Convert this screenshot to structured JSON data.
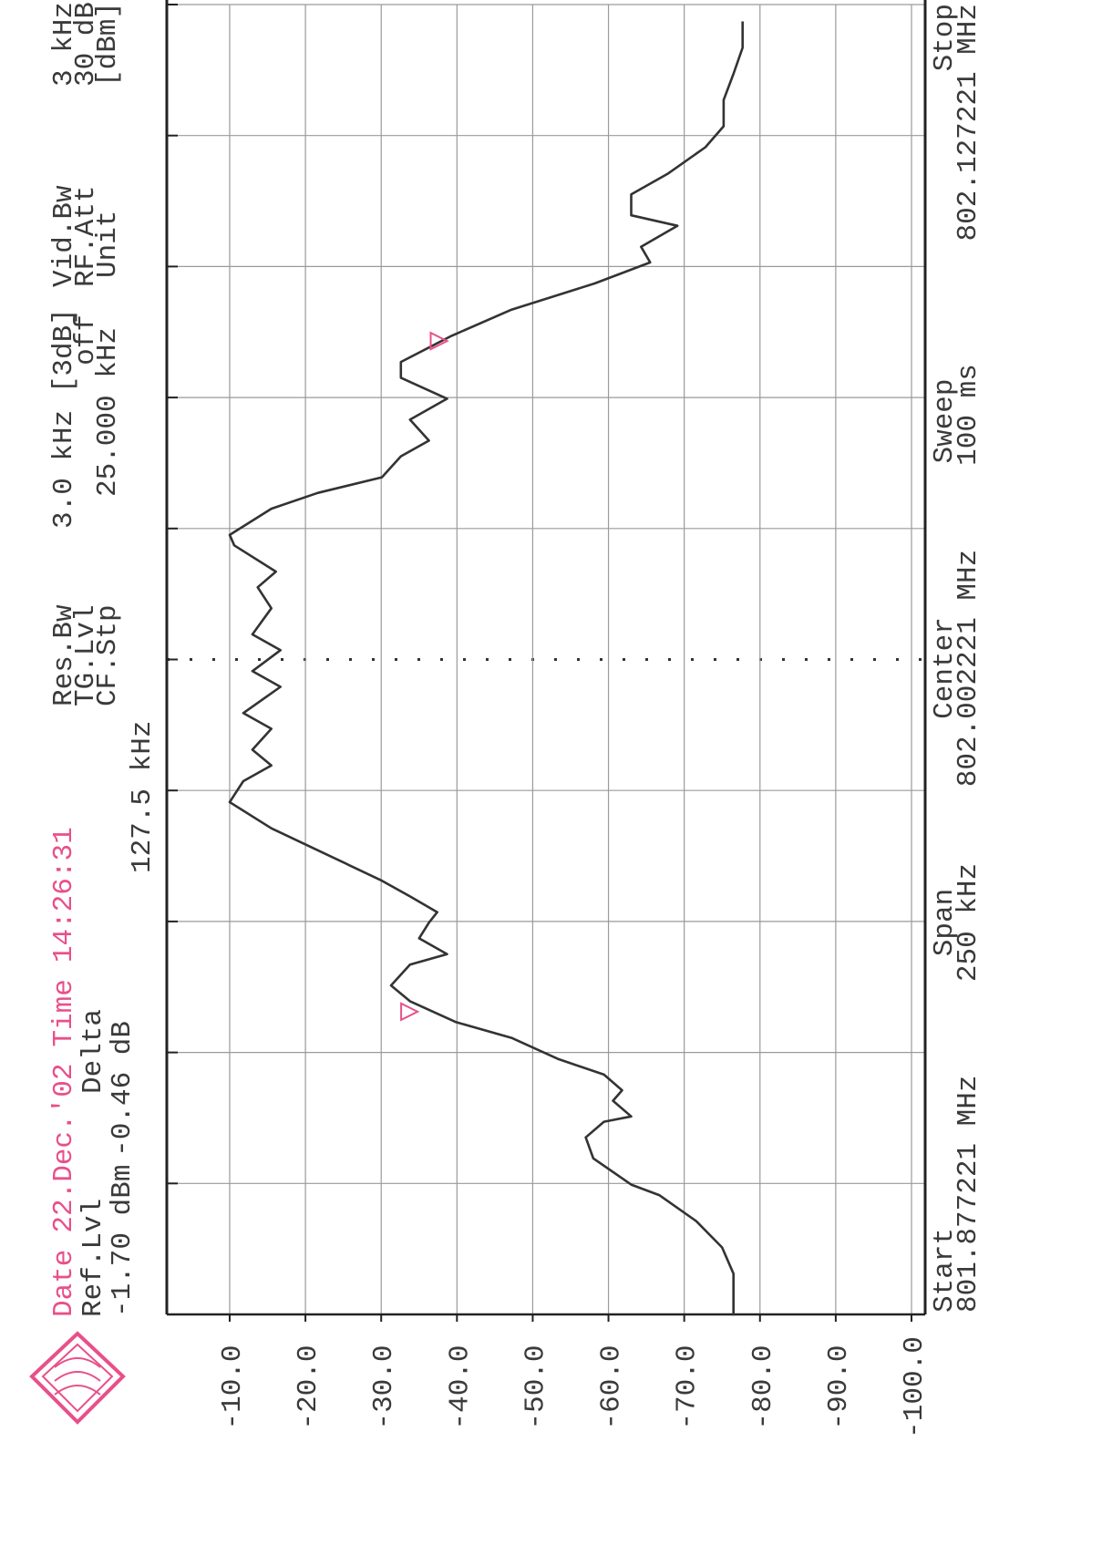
{
  "chart_data": {
    "type": "line",
    "info": {
      "date_label": "Date",
      "date": "22.Dec.'02",
      "time_label": "Time",
      "time": "14:26:31",
      "ref_label": "Ref.Lvl",
      "ref_value": "-1.70 dBm",
      "delta_label": "Delta",
      "delta_value": "-0.46 dB",
      "delta_freq": "127.5 kHz",
      "res_bw_label": "Res.Bw",
      "res_bw": "3.0 kHz [3dB]",
      "tg_label": "TG.Lvl",
      "tg": "off",
      "cf_label": "CF.Stp",
      "cf": "25.000 kHz",
      "vid_label": "Vid.Bw",
      "vid": "3 kHz",
      "rf_label": "RF.Att",
      "rf": "30 dB",
      "unit_label": "Unit",
      "unit": "[dBm]"
    },
    "footer": {
      "start_label": "Start",
      "start": "801.877221 MHz",
      "span_label": "Span",
      "span": "250 kHz",
      "center_label": "Center",
      "center": "802.002221 MHz",
      "sweep_label": "Sweep",
      "sweep": "100 ms",
      "stop_label": "Stop",
      "stop": "802.127221 MHz"
    },
    "xlim": [
      801.877221,
      802.127221
    ],
    "ylim": [
      -1.7,
      -100
    ],
    "yticks": [
      {
        "value": -10,
        "label": "-10.0"
      },
      {
        "value": -20,
        "label": "-20.0"
      },
      {
        "value": -30,
        "label": "-30.0"
      },
      {
        "value": -40,
        "label": "-40.0"
      },
      {
        "value": -50,
        "label": "-50.0"
      },
      {
        "value": -60,
        "label": "-60.0"
      },
      {
        "value": -70,
        "label": "-70.0"
      },
      {
        "value": -80,
        "label": "-80.0"
      },
      {
        "value": -90,
        "label": "-90.0"
      },
      {
        "value": -100,
        "label": "-100.0"
      }
    ],
    "grid": true,
    "color": "#333333",
    "marker_color": "#e8508a",
    "x": [
      801.877,
      801.885,
      801.89,
      801.895,
      801.9,
      801.902,
      801.907,
      801.911,
      801.914,
      801.915,
      801.918,
      801.92,
      801.923,
      801.926,
      801.93,
      801.933,
      801.937,
      801.94,
      801.944,
      801.946,
      801.949,
      801.952,
      801.954,
      801.957,
      801.96,
      801.965,
      801.97,
      801.975,
      801.979,
      801.982,
      801.985,
      801.989,
      801.992,
      801.997,
      802.0,
      802.004,
      802.007,
      802.012,
      802.016,
      802.019,
      802.024,
      802.026,
      802.031,
      802.034,
      802.037,
      802.041,
      802.044,
      802.048,
      802.052,
      802.056,
      802.059,
      802.064,
      802.069,
      802.074,
      802.078,
      802.081,
      802.085,
      802.087,
      802.091,
      802.095,
      802.1,
      802.104,
      802.109,
      802.114,
      802.119,
      802.124
    ],
    "values": [
      -76.5,
      -76.5,
      -75,
      -71.6,
      -66.7,
      -63,
      -58,
      -57,
      -59.4,
      -63,
      -60.6,
      -61.8,
      -59.4,
      -53.3,
      -47.2,
      -39.9,
      -33.8,
      -31.3,
      -33.8,
      -38.7,
      -35,
      -36.3,
      -37.4,
      -33.8,
      -30.1,
      -22.8,
      -15.5,
      -10,
      -11.8,
      -15.5,
      -13,
      -15.5,
      -11.8,
      -16.7,
      -13,
      -16.7,
      -13,
      -15.5,
      -13.7,
      -16.1,
      -10.6,
      -10,
      -15.5,
      -21.6,
      -30.1,
      -32.6,
      -36.3,
      -33.8,
      -38.7,
      -32.6,
      -32.6,
      -39.3,
      -47.2,
      -58.2,
      -65.5,
      -64.3,
      -69.1,
      -63,
      -63,
      -67.9,
      -72.8,
      -75.2,
      -75.2,
      -76.5,
      -77.7,
      -77.7
    ],
    "markers": [
      {
        "x": 801.935,
        "value": -34.8
      },
      {
        "x": 802.063,
        "value": -38.7
      }
    ]
  }
}
